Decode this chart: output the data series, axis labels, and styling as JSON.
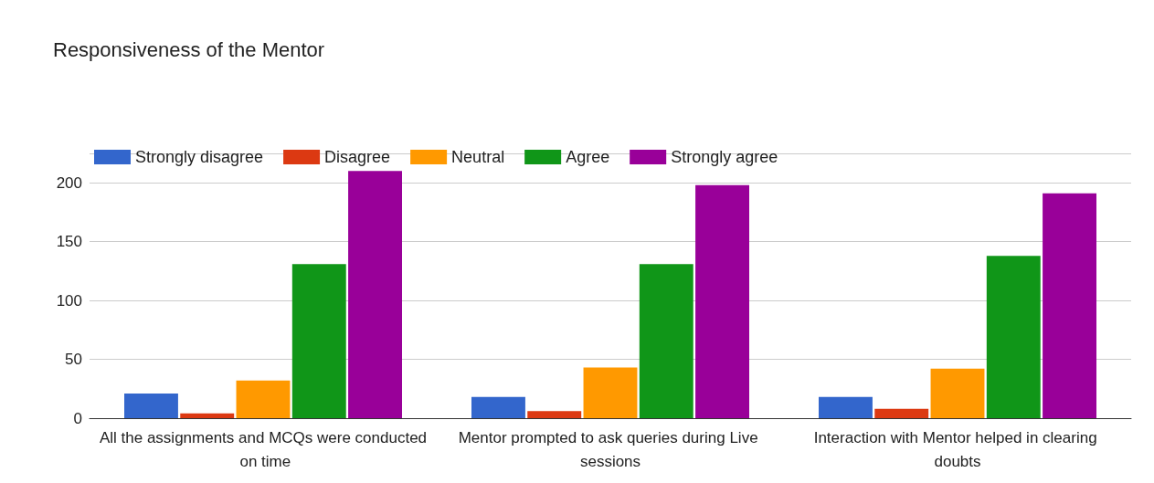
{
  "chart_data": {
    "type": "bar",
    "title": "Responsiveness of the Mentor",
    "categories": [
      "All the assignments and MCQs were conducted on time",
      "Mentor prompted to ask queries during Live sessions",
      "Interaction with Mentor helped in clearing doubts"
    ],
    "series": [
      {
        "name": "Strongly disagree",
        "color": "#3366cc",
        "values": [
          21,
          18,
          18
        ]
      },
      {
        "name": "Disagree",
        "color": "#dc3912",
        "values": [
          4,
          6,
          8
        ]
      },
      {
        "name": "Neutral",
        "color": "#ff9900",
        "values": [
          32,
          43,
          42
        ]
      },
      {
        "name": "Agree",
        "color": "#109618",
        "values": [
          131,
          131,
          138
        ]
      },
      {
        "name": "Strongly agree",
        "color": "#990099",
        "values": [
          210,
          198,
          191
        ]
      }
    ],
    "ylim": [
      0,
      225
    ],
    "yticks": [
      0,
      50,
      100,
      150,
      200,
      {
        "value": 225,
        "label": null
      }
    ],
    "grid": "y",
    "legend": "top left"
  }
}
